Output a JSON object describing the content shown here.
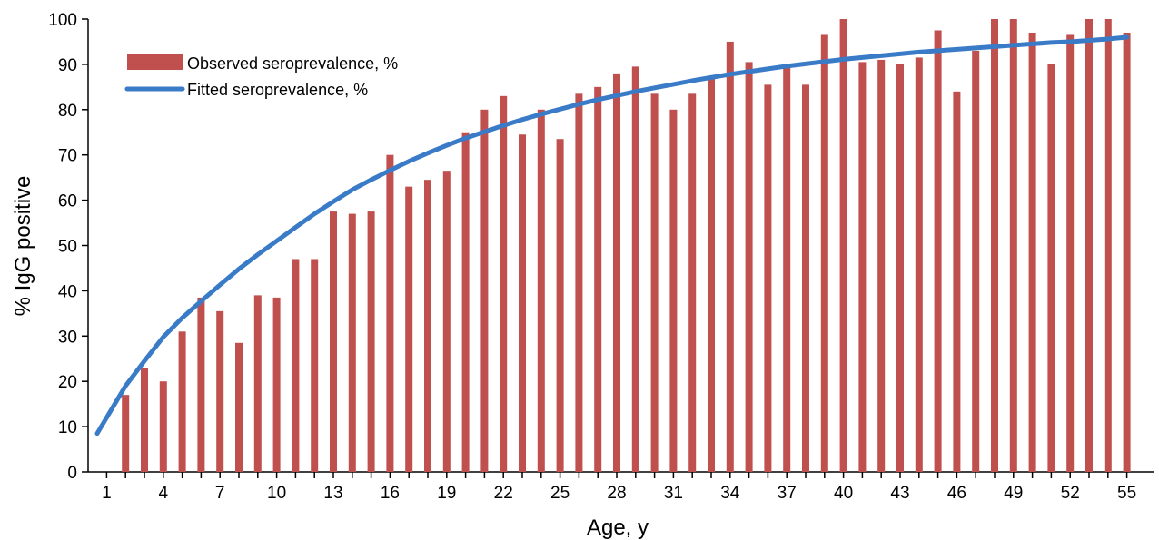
{
  "chart_data": {
    "type": "bar",
    "xlabel": "Age, y",
    "ylabel": "% IgG positive",
    "ylim": [
      0,
      100
    ],
    "yticks": [
      0,
      10,
      20,
      30,
      40,
      50,
      60,
      70,
      80,
      90,
      100
    ],
    "xlim": [
      1,
      55
    ],
    "xticks": [
      1,
      4,
      7,
      10,
      13,
      16,
      19,
      22,
      25,
      28,
      31,
      34,
      37,
      40,
      43,
      46,
      49,
      52,
      55
    ],
    "x": [
      2,
      3,
      4,
      5,
      6,
      7,
      8,
      9,
      10,
      11,
      12,
      13,
      14,
      15,
      16,
      17,
      18,
      19,
      20,
      21,
      22,
      23,
      24,
      25,
      26,
      27,
      28,
      29,
      30,
      31,
      32,
      33,
      34,
      35,
      36,
      37,
      38,
      39,
      40,
      41,
      42,
      43,
      44,
      45,
      46,
      47,
      48,
      49,
      50,
      51,
      52,
      53,
      54,
      55
    ],
    "series": [
      {
        "name": "Observed seroprevalence, %",
        "kind": "bar",
        "color": "#c0504d",
        "values": [
          17,
          23,
          20,
          31,
          38.5,
          35.5,
          28.5,
          39,
          38.5,
          47,
          47,
          57.5,
          57,
          57.5,
          70,
          63,
          64.5,
          66.5,
          75,
          80,
          83,
          74.5,
          80,
          73.5,
          83.5,
          85,
          88,
          89.5,
          83.5,
          80,
          83.5,
          87.5,
          95,
          90.5,
          85.5,
          89.5,
          85.5,
          96.5,
          100,
          90.5,
          91,
          90,
          91.5,
          97.5,
          84,
          93,
          100,
          100,
          97,
          90,
          96.5,
          100,
          100,
          97
        ]
      },
      {
        "name": "Fitted seroprevalence, %",
        "kind": "line",
        "color": "#3a7bc8",
        "x": [
          0.5,
          1,
          2,
          3,
          4,
          5,
          6,
          7,
          8,
          9,
          10,
          11,
          12,
          13,
          14,
          15,
          16,
          17,
          18,
          19,
          20,
          21,
          22,
          23,
          24,
          25,
          26,
          27,
          28,
          29,
          30,
          31,
          32,
          33,
          34,
          35,
          36,
          37,
          38,
          39,
          40,
          41,
          42,
          43,
          44,
          45,
          46,
          47,
          48,
          49,
          50,
          51,
          52,
          53,
          54,
          55
        ],
        "values": [
          8.5,
          12,
          19,
          24.5,
          29.8,
          34,
          37.7,
          41.3,
          44.8,
          48,
          51,
          54,
          57,
          59.7,
          62.3,
          64.5,
          66.6,
          68.6,
          70.4,
          72.1,
          73.7,
          75.1,
          76.5,
          77.8,
          79,
          80.1,
          81.2,
          82.2,
          83.1,
          84,
          84.8,
          85.6,
          86.4,
          87.1,
          87.8,
          88.4,
          89,
          89.6,
          90.1,
          90.6,
          91.1,
          91.5,
          91.9,
          92.3,
          92.7,
          93,
          93.3,
          93.6,
          93.9,
          94.2,
          94.5,
          94.8,
          95,
          95.3,
          95.6,
          96
        ]
      }
    ],
    "legend_position": "top-left",
    "grid": false
  }
}
